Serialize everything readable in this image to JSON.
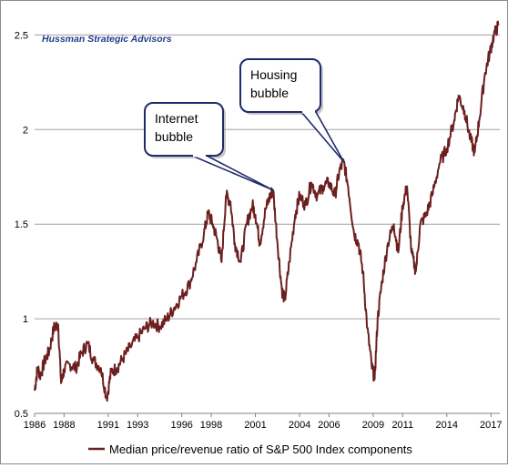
{
  "chart_data": {
    "type": "line",
    "watermark": "Hussman Strategic Advisors",
    "xlabel": "",
    "ylabel": "",
    "xlim": [
      1986,
      2017.6
    ],
    "ylim": [
      0.5,
      2.55
    ],
    "y_ticks": [
      "0.5",
      "1",
      "1.5",
      "2",
      "2.5"
    ],
    "x_ticks": [
      "1986",
      "1988",
      "1991",
      "1993",
      "1996",
      "1998",
      "2001",
      "2004",
      "2006",
      "2009",
      "2011",
      "2014",
      "2017"
    ],
    "grid": "horizontal",
    "series": [
      {
        "name": "Median price/revenue ratio of S&P 500 Index components",
        "color": "#6b1f1f",
        "points": [
          [
            1986.0,
            0.62
          ],
          [
            1986.2,
            0.74
          ],
          [
            1986.4,
            0.7
          ],
          [
            1986.7,
            0.78
          ],
          [
            1987.0,
            0.83
          ],
          [
            1987.3,
            0.95
          ],
          [
            1987.6,
            0.97
          ],
          [
            1987.8,
            0.66
          ],
          [
            1988.0,
            0.73
          ],
          [
            1988.4,
            0.76
          ],
          [
            1988.8,
            0.74
          ],
          [
            1989.2,
            0.82
          ],
          [
            1989.6,
            0.87
          ],
          [
            1990.0,
            0.78
          ],
          [
            1990.5,
            0.74
          ],
          [
            1990.9,
            0.58
          ],
          [
            1991.2,
            0.72
          ],
          [
            1991.6,
            0.74
          ],
          [
            1992.0,
            0.79
          ],
          [
            1992.5,
            0.85
          ],
          [
            1993.0,
            0.9
          ],
          [
            1993.5,
            0.95
          ],
          [
            1994.0,
            0.98
          ],
          [
            1994.5,
            0.96
          ],
          [
            1995.0,
            1.0
          ],
          [
            1995.5,
            1.06
          ],
          [
            1996.0,
            1.12
          ],
          [
            1996.5,
            1.18
          ],
          [
            1997.0,
            1.3
          ],
          [
            1997.5,
            1.45
          ],
          [
            1997.8,
            1.56
          ],
          [
            1998.1,
            1.5
          ],
          [
            1998.4,
            1.42
          ],
          [
            1998.7,
            1.3
          ],
          [
            1999.0,
            1.65
          ],
          [
            1999.3,
            1.62
          ],
          [
            1999.6,
            1.4
          ],
          [
            2000.0,
            1.3
          ],
          [
            2000.4,
            1.5
          ],
          [
            2000.8,
            1.6
          ],
          [
            2001.0,
            1.55
          ],
          [
            2001.3,
            1.4
          ],
          [
            2001.7,
            1.58
          ],
          [
            2002.0,
            1.65
          ],
          [
            2002.2,
            1.68
          ],
          [
            2002.5,
            1.4
          ],
          [
            2002.8,
            1.15
          ],
          [
            2003.0,
            1.1
          ],
          [
            2003.3,
            1.3
          ],
          [
            2003.7,
            1.55
          ],
          [
            2004.0,
            1.65
          ],
          [
            2004.4,
            1.6
          ],
          [
            2004.8,
            1.72
          ],
          [
            2005.2,
            1.65
          ],
          [
            2005.6,
            1.7
          ],
          [
            2006.0,
            1.72
          ],
          [
            2006.4,
            1.65
          ],
          [
            2006.7,
            1.78
          ],
          [
            2007.0,
            1.83
          ],
          [
            2007.3,
            1.7
          ],
          [
            2007.7,
            1.45
          ],
          [
            2008.0,
            1.4
          ],
          [
            2008.3,
            1.25
          ],
          [
            2008.6,
            0.95
          ],
          [
            2008.9,
            0.75
          ],
          [
            2009.1,
            0.68
          ],
          [
            2009.3,
            1.0
          ],
          [
            2009.6,
            1.2
          ],
          [
            2010.0,
            1.4
          ],
          [
            2010.4,
            1.5
          ],
          [
            2010.7,
            1.35
          ],
          [
            2011.0,
            1.6
          ],
          [
            2011.3,
            1.7
          ],
          [
            2011.6,
            1.35
          ],
          [
            2011.9,
            1.25
          ],
          [
            2012.2,
            1.5
          ],
          [
            2012.6,
            1.55
          ],
          [
            2013.0,
            1.65
          ],
          [
            2013.5,
            1.82
          ],
          [
            2014.0,
            1.9
          ],
          [
            2014.5,
            2.05
          ],
          [
            2014.8,
            2.18
          ],
          [
            2015.2,
            2.1
          ],
          [
            2015.6,
            1.95
          ],
          [
            2015.9,
            1.88
          ],
          [
            2016.2,
            2.05
          ],
          [
            2016.6,
            2.3
          ],
          [
            2016.9,
            2.4
          ],
          [
            2017.2,
            2.5
          ],
          [
            2017.5,
            2.55
          ]
        ]
      }
    ],
    "annotations": [
      {
        "lines": [
          "Internet",
          "bubble"
        ],
        "target": [
          2002.2,
          1.68
        ]
      },
      {
        "lines": [
          "Housing",
          "bubble"
        ],
        "target": [
          2007.0,
          1.83
        ]
      }
    ],
    "legend": {
      "position": "bottom",
      "label": "Median price/revenue ratio of S&P 500 Index components"
    }
  }
}
